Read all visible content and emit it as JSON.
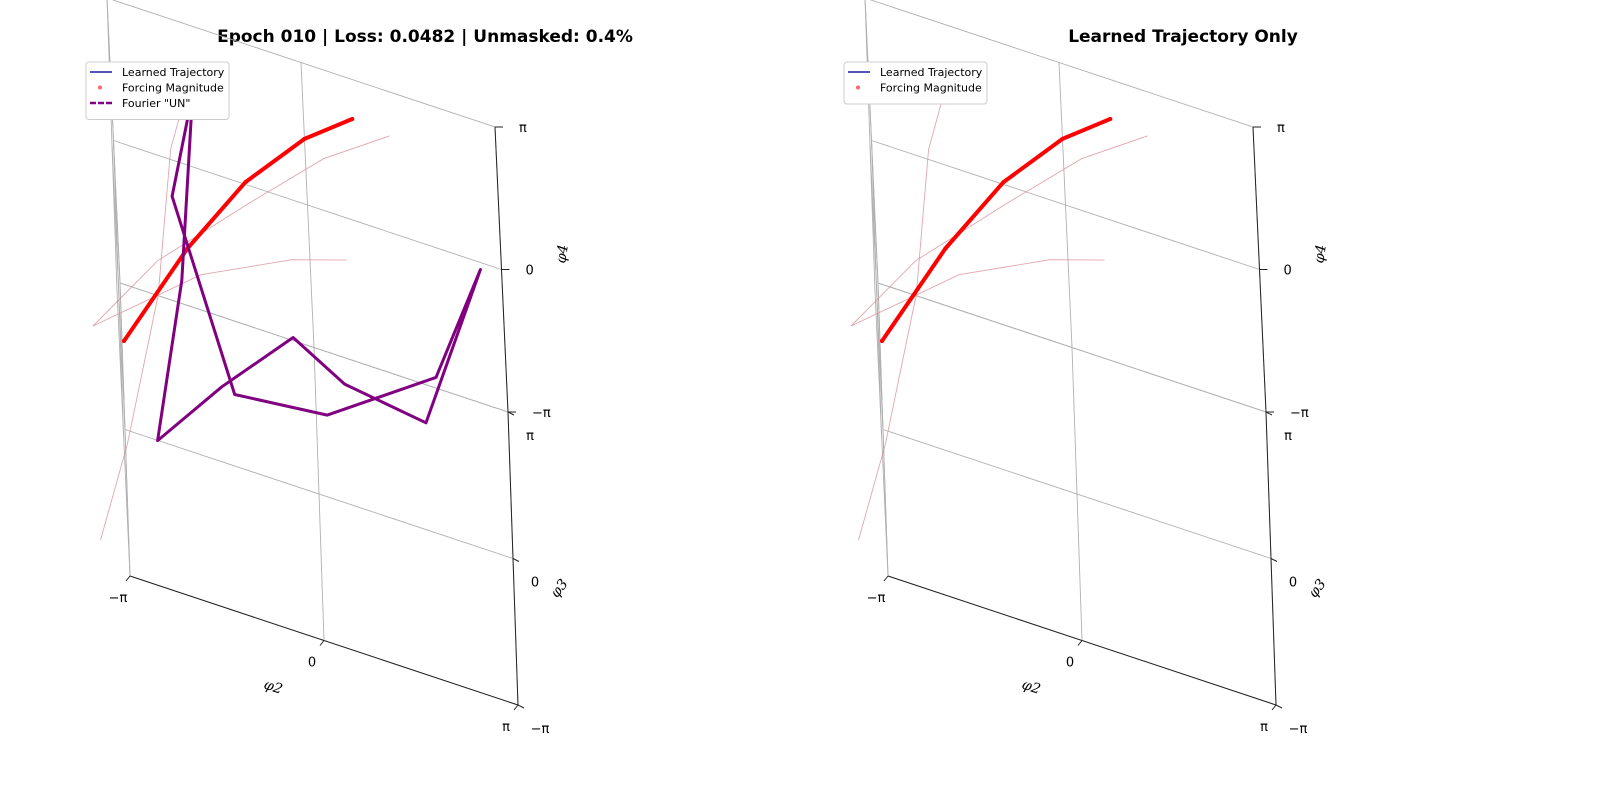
{
  "chart_data": [
    {
      "type": "line",
      "projection": "3d",
      "title": "Epoch 010 | Loss: 0.0482 | Unmasked: 0.4%",
      "xlabel": "φ2",
      "ylabel": "φ3",
      "zlabel": "φ4",
      "xlim": [
        -3.1416,
        3.1416
      ],
      "ylim": [
        -3.1416,
        3.1416
      ],
      "zlim": [
        -3.1416,
        3.1416
      ],
      "x_tick_labels": [
        "−π",
        "0",
        "π"
      ],
      "y_tick_labels": [
        "−π",
        "0",
        "π"
      ],
      "z_tick_labels": [
        "−π",
        "0",
        "π"
      ],
      "grid": true,
      "legend_position": "top-left",
      "legend": [
        "Learned Trajectory",
        "Forcing Magnitude",
        "Fourier \"UN\""
      ],
      "series": [
        {
          "name": "Learned Trajectory",
          "color": "#1c1c9c",
          "style": "solid"
        },
        {
          "name": "Forcing Magnitude",
          "color": "#ff0000",
          "style": "markers",
          "points": [
            [
              -3.1,
              1.0,
              -2.2
            ],
            [
              -2.0,
              2.3,
              -1.0
            ],
            [
              -1.0,
              2.9,
              0.3
            ],
            [
              0.0,
              3.1,
              1.5
            ],
            [
              0.8,
              3.1,
              2.3
            ]
          ]
        },
        {
          "name": "Fourier \"UN\"",
          "color": "#800080",
          "style": "dashed",
          "points": [
            [
              -1.8,
              2.4,
              2.4
            ],
            [
              -2.1,
              0.5,
              0.1
            ],
            [
              -2.6,
              -1.5,
              -1.6
            ],
            [
              -1.5,
              -2.0,
              0.6
            ],
            [
              -0.3,
              -1.0,
              1.2
            ],
            [
              0.5,
              0.3,
              -0.8
            ],
            [
              1.8,
              1.5,
              -2.3
            ],
            [
              2.8,
              2.6,
              0.4
            ],
            [
              2.0,
              1.2,
              -0.9
            ],
            [
              0.2,
              -0.4,
              -0.9
            ],
            [
              -1.3,
              -1.3,
              -0.2
            ],
            [
              -2.2,
              0.9,
              1.5
            ],
            [
              -1.8,
              2.4,
              2.4
            ]
          ]
        }
      ]
    },
    {
      "type": "line",
      "projection": "3d",
      "title": "Learned Trajectory Only",
      "xlabel": "φ2",
      "ylabel": "φ3",
      "zlabel": "φ4",
      "xlim": [
        -3.1416,
        3.1416
      ],
      "ylim": [
        -3.1416,
        3.1416
      ],
      "zlim": [
        -3.1416,
        3.1416
      ],
      "x_tick_labels": [
        "−π",
        "0",
        "π"
      ],
      "y_tick_labels": [
        "−π",
        "0",
        "π"
      ],
      "z_tick_labels": [
        "−π",
        "0",
        "π"
      ],
      "grid": true,
      "legend_position": "top-left",
      "legend": [
        "Learned Trajectory",
        "Forcing Magnitude"
      ],
      "series": [
        {
          "name": "Learned Trajectory",
          "color": "#1c1c9c",
          "style": "solid"
        },
        {
          "name": "Forcing Magnitude",
          "color": "#ff0000",
          "style": "markers",
          "points": [
            [
              -3.1,
              1.0,
              -2.2
            ],
            [
              -2.0,
              2.3,
              -1.0
            ],
            [
              -1.0,
              2.9,
              0.3
            ],
            [
              0.0,
              3.1,
              1.5
            ],
            [
              0.8,
              3.1,
              2.3
            ]
          ]
        }
      ]
    }
  ]
}
